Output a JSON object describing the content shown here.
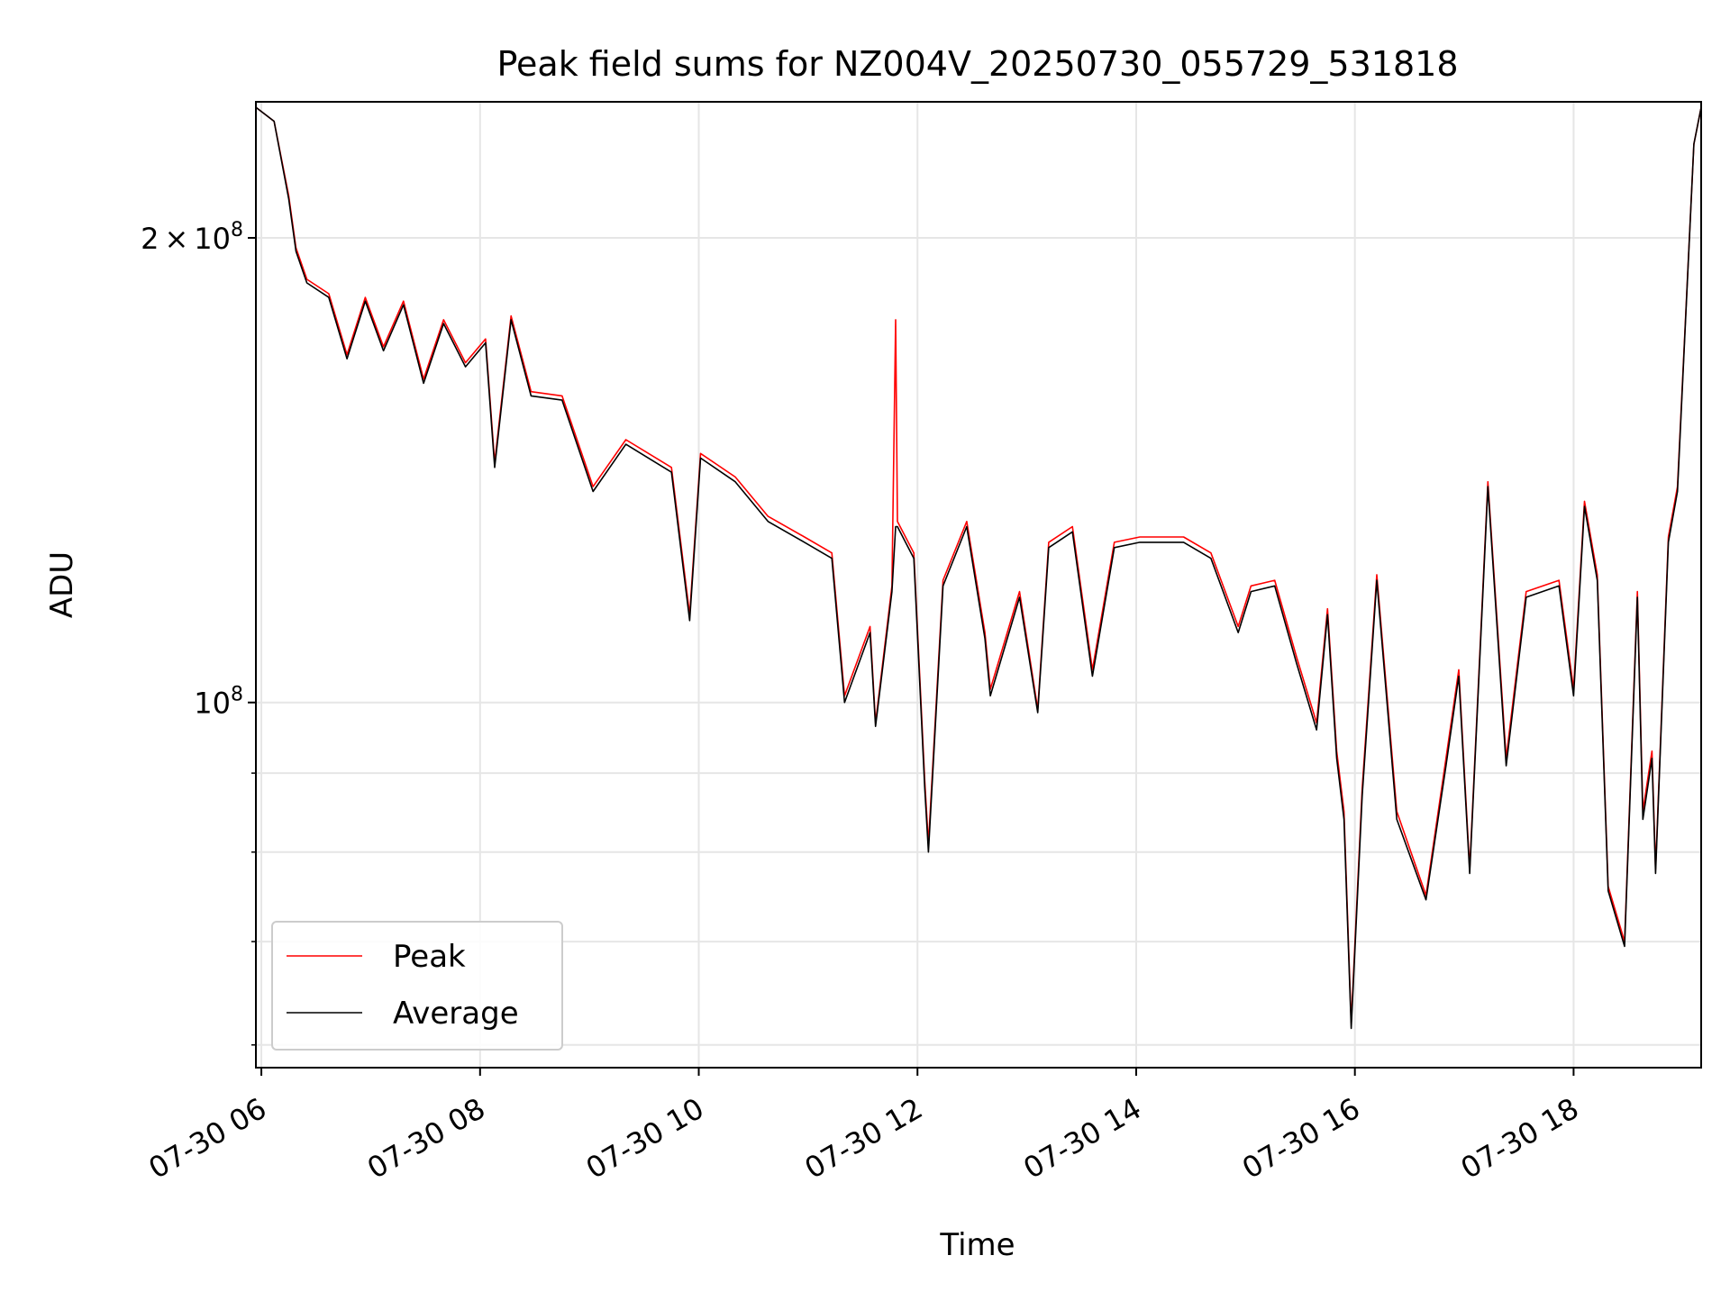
{
  "chart_data": {
    "type": "line",
    "title": "Peak field sums for NZ004V_20250730_055729_531818",
    "xlabel": "Time",
    "ylabel": "ADU",
    "y_scale": "log",
    "grid": true,
    "legend_position": "lower-left",
    "xlim": [
      "2025-07-30 05:57",
      "2025-07-30 19:10"
    ],
    "ylim": [
      58000000,
      245000000
    ],
    "x_ticks": [
      {
        "t": "2025-07-30 06:00",
        "label": "07-30 06"
      },
      {
        "t": "2025-07-30 08:00",
        "label": "07-30 08"
      },
      {
        "t": "2025-07-30 10:00",
        "label": "07-30 10"
      },
      {
        "t": "2025-07-30 12:00",
        "label": "07-30 12"
      },
      {
        "t": "2025-07-30 14:00",
        "label": "07-30 14"
      },
      {
        "t": "2025-07-30 16:00",
        "label": "07-30 16"
      },
      {
        "t": "2025-07-30 18:00",
        "label": "07-30 18"
      }
    ],
    "y_major_ticks": [
      {
        "value": 100000000,
        "mantissa": "",
        "exponent": "8"
      },
      {
        "value": 200000000,
        "mantissa": "2",
        "exponent": "8"
      }
    ],
    "y_minor_ticks": [
      60000000,
      70000000,
      80000000,
      90000000
    ],
    "series": [
      {
        "name": "Peak",
        "color": "#ff0000",
        "points": [
          [
            "2025-07-30 05:57",
            243000000
          ],
          [
            "2025-07-30 06:07",
            238000000
          ],
          [
            "2025-07-30 06:15",
            213000000
          ],
          [
            "2025-07-30 06:19",
            197000000
          ],
          [
            "2025-07-30 06:25",
            188000000
          ],
          [
            "2025-07-30 06:37",
            184000000
          ],
          [
            "2025-07-30 06:47",
            168000000
          ],
          [
            "2025-07-30 06:57",
            183000000
          ],
          [
            "2025-07-30 07:07",
            170000000
          ],
          [
            "2025-07-30 07:18",
            182000000
          ],
          [
            "2025-07-30 07:29",
            162000000
          ],
          [
            "2025-07-30 07:40",
            177000000
          ],
          [
            "2025-07-30 07:52",
            166000000
          ],
          [
            "2025-07-30 08:03",
            172000000
          ],
          [
            "2025-07-30 08:08",
            143000000
          ],
          [
            "2025-07-30 08:17",
            178000000
          ],
          [
            "2025-07-30 08:28",
            159000000
          ],
          [
            "2025-07-30 08:45",
            158000000
          ],
          [
            "2025-07-30 09:02",
            138000000
          ],
          [
            "2025-07-30 09:20",
            148000000
          ],
          [
            "2025-07-30 09:45",
            142000000
          ],
          [
            "2025-07-30 09:55",
            114000000
          ],
          [
            "2025-07-30 10:01",
            145000000
          ],
          [
            "2025-07-30 10:20",
            140000000
          ],
          [
            "2025-07-30 10:38",
            132000000
          ],
          [
            "2025-07-30 10:58",
            128000000
          ],
          [
            "2025-07-30 11:13",
            125000000
          ],
          [
            "2025-07-30 11:20",
            101000000
          ],
          [
            "2025-07-30 11:34",
            112000000
          ],
          [
            "2025-07-30 11:37",
            97000000
          ],
          [
            "2025-07-30 11:46",
            119000000
          ],
          [
            "2025-07-30 11:48",
            177000000
          ],
          [
            "2025-07-30 11:49",
            131000000
          ],
          [
            "2025-07-30 11:58",
            125000000
          ],
          [
            "2025-07-30 12:04",
            89000000
          ],
          [
            "2025-07-30 12:06",
            81000000
          ],
          [
            "2025-07-30 12:14",
            120000000
          ],
          [
            "2025-07-30 12:27",
            131000000
          ],
          [
            "2025-07-30 12:37",
            111000000
          ],
          [
            "2025-07-30 12:40",
            102000000
          ],
          [
            "2025-07-30 12:56",
            118000000
          ],
          [
            "2025-07-30 13:06",
            99000000
          ],
          [
            "2025-07-30 13:12",
            127000000
          ],
          [
            "2025-07-30 13:25",
            130000000
          ],
          [
            "2025-07-30 13:36",
            105000000
          ],
          [
            "2025-07-30 13:48",
            127000000
          ],
          [
            "2025-07-30 14:02",
            128000000
          ],
          [
            "2025-07-30 14:26",
            128000000
          ],
          [
            "2025-07-30 14:41",
            125000000
          ],
          [
            "2025-07-30 14:56",
            112000000
          ],
          [
            "2025-07-30 15:03",
            119000000
          ],
          [
            "2025-07-30 15:16",
            120000000
          ],
          [
            "2025-07-30 15:28",
            107000000
          ],
          [
            "2025-07-30 15:39",
            97000000
          ],
          [
            "2025-07-30 15:45",
            115000000
          ],
          [
            "2025-07-30 15:50",
            93000000
          ],
          [
            "2025-07-30 15:54",
            85000000
          ],
          [
            "2025-07-30 15:58",
            62000000
          ],
          [
            "2025-07-30 16:04",
            88000000
          ],
          [
            "2025-07-30 16:12",
            121000000
          ],
          [
            "2025-07-30 16:23",
            85000000
          ],
          [
            "2025-07-30 16:39",
            75000000
          ],
          [
            "2025-07-30 16:50",
            92000000
          ],
          [
            "2025-07-30 16:57",
            105000000
          ],
          [
            "2025-07-30 17:03",
            78000000
          ],
          [
            "2025-07-30 17:13",
            139000000
          ],
          [
            "2025-07-30 17:23",
            92000000
          ],
          [
            "2025-07-30 17:34",
            118000000
          ],
          [
            "2025-07-30 17:52",
            120000000
          ],
          [
            "2025-07-30 18:00",
            102000000
          ],
          [
            "2025-07-30 18:06",
            135000000
          ],
          [
            "2025-07-30 18:13",
            121000000
          ],
          [
            "2025-07-30 18:19",
            76000000
          ],
          [
            "2025-07-30 18:28",
            70000000
          ],
          [
            "2025-07-30 18:35",
            118000000
          ],
          [
            "2025-07-30 18:38",
            85000000
          ],
          [
            "2025-07-30 18:43",
            93000000
          ],
          [
            "2025-07-30 18:45",
            78000000
          ],
          [
            "2025-07-30 18:52",
            128000000
          ],
          [
            "2025-07-30 18:57",
            138000000
          ],
          [
            "2025-07-30 19:06",
            230000000
          ],
          [
            "2025-07-30 19:10",
            243000000
          ]
        ]
      },
      {
        "name": "Average",
        "color": "#000000",
        "points": [
          [
            "2025-07-30 05:57",
            243000000
          ],
          [
            "2025-07-30 06:07",
            238000000
          ],
          [
            "2025-07-30 06:15",
            212000000
          ],
          [
            "2025-07-30 06:19",
            196000000
          ],
          [
            "2025-07-30 06:25",
            187000000
          ],
          [
            "2025-07-30 06:37",
            183000000
          ],
          [
            "2025-07-30 06:47",
            167000000
          ],
          [
            "2025-07-30 06:57",
            182000000
          ],
          [
            "2025-07-30 07:07",
            169000000
          ],
          [
            "2025-07-30 07:18",
            181000000
          ],
          [
            "2025-07-30 07:29",
            161000000
          ],
          [
            "2025-07-30 07:40",
            176000000
          ],
          [
            "2025-07-30 07:52",
            165000000
          ],
          [
            "2025-07-30 08:03",
            171000000
          ],
          [
            "2025-07-30 08:08",
            142000000
          ],
          [
            "2025-07-30 08:17",
            177000000
          ],
          [
            "2025-07-30 08:28",
            158000000
          ],
          [
            "2025-07-30 08:45",
            157000000
          ],
          [
            "2025-07-30 09:02",
            137000000
          ],
          [
            "2025-07-30 09:20",
            147000000
          ],
          [
            "2025-07-30 09:45",
            141000000
          ],
          [
            "2025-07-30 09:55",
            113000000
          ],
          [
            "2025-07-30 10:01",
            144000000
          ],
          [
            "2025-07-30 10:20",
            139000000
          ],
          [
            "2025-07-30 10:38",
            131000000
          ],
          [
            "2025-07-30 10:58",
            127000000
          ],
          [
            "2025-07-30 11:13",
            124000000
          ],
          [
            "2025-07-30 11:20",
            100000000
          ],
          [
            "2025-07-30 11:34",
            111000000
          ],
          [
            "2025-07-30 11:37",
            96500000
          ],
          [
            "2025-07-30 11:46",
            118000000
          ],
          [
            "2025-07-30 11:48",
            130000000
          ],
          [
            "2025-07-30 11:49",
            130000000
          ],
          [
            "2025-07-30 11:58",
            124000000
          ],
          [
            "2025-07-30 12:04",
            88000000
          ],
          [
            "2025-07-30 12:06",
            80000000
          ],
          [
            "2025-07-30 12:14",
            119000000
          ],
          [
            "2025-07-30 12:27",
            130000000
          ],
          [
            "2025-07-30 12:37",
            110000000
          ],
          [
            "2025-07-30 12:40",
            101000000
          ],
          [
            "2025-07-30 12:56",
            117000000
          ],
          [
            "2025-07-30 13:06",
            98500000
          ],
          [
            "2025-07-30 13:12",
            126000000
          ],
          [
            "2025-07-30 13:25",
            129000000
          ],
          [
            "2025-07-30 13:36",
            104000000
          ],
          [
            "2025-07-30 13:48",
            126000000
          ],
          [
            "2025-07-30 14:02",
            127000000
          ],
          [
            "2025-07-30 14:26",
            127000000
          ],
          [
            "2025-07-30 14:41",
            124000000
          ],
          [
            "2025-07-30 14:56",
            111000000
          ],
          [
            "2025-07-30 15:03",
            118000000
          ],
          [
            "2025-07-30 15:16",
            119000000
          ],
          [
            "2025-07-30 15:28",
            106000000
          ],
          [
            "2025-07-30 15:39",
            96000000
          ],
          [
            "2025-07-30 15:45",
            114000000
          ],
          [
            "2025-07-30 15:50",
            92000000
          ],
          [
            "2025-07-30 15:54",
            84000000
          ],
          [
            "2025-07-30 15:58",
            61500000
          ],
          [
            "2025-07-30 16:04",
            87000000
          ],
          [
            "2025-07-30 16:12",
            120000000
          ],
          [
            "2025-07-30 16:23",
            84000000
          ],
          [
            "2025-07-30 16:39",
            74500000
          ],
          [
            "2025-07-30 16:50",
            91000000
          ],
          [
            "2025-07-30 16:57",
            104000000
          ],
          [
            "2025-07-30 17:03",
            77500000
          ],
          [
            "2025-07-30 17:13",
            138000000
          ],
          [
            "2025-07-30 17:23",
            91000000
          ],
          [
            "2025-07-30 17:34",
            117000000
          ],
          [
            "2025-07-30 17:52",
            119000000
          ],
          [
            "2025-07-30 18:00",
            101000000
          ],
          [
            "2025-07-30 18:06",
            134000000
          ],
          [
            "2025-07-30 18:13",
            120000000
          ],
          [
            "2025-07-30 18:19",
            75500000
          ],
          [
            "2025-07-30 18:28",
            69500000
          ],
          [
            "2025-07-30 18:35",
            117000000
          ],
          [
            "2025-07-30 18:38",
            84000000
          ],
          [
            "2025-07-30 18:43",
            92000000
          ],
          [
            "2025-07-30 18:45",
            77500000
          ],
          [
            "2025-07-30 18:52",
            127000000
          ],
          [
            "2025-07-30 18:57",
            137000000
          ],
          [
            "2025-07-30 19:06",
            230000000
          ],
          [
            "2025-07-30 19:10",
            243000000
          ]
        ]
      }
    ]
  }
}
